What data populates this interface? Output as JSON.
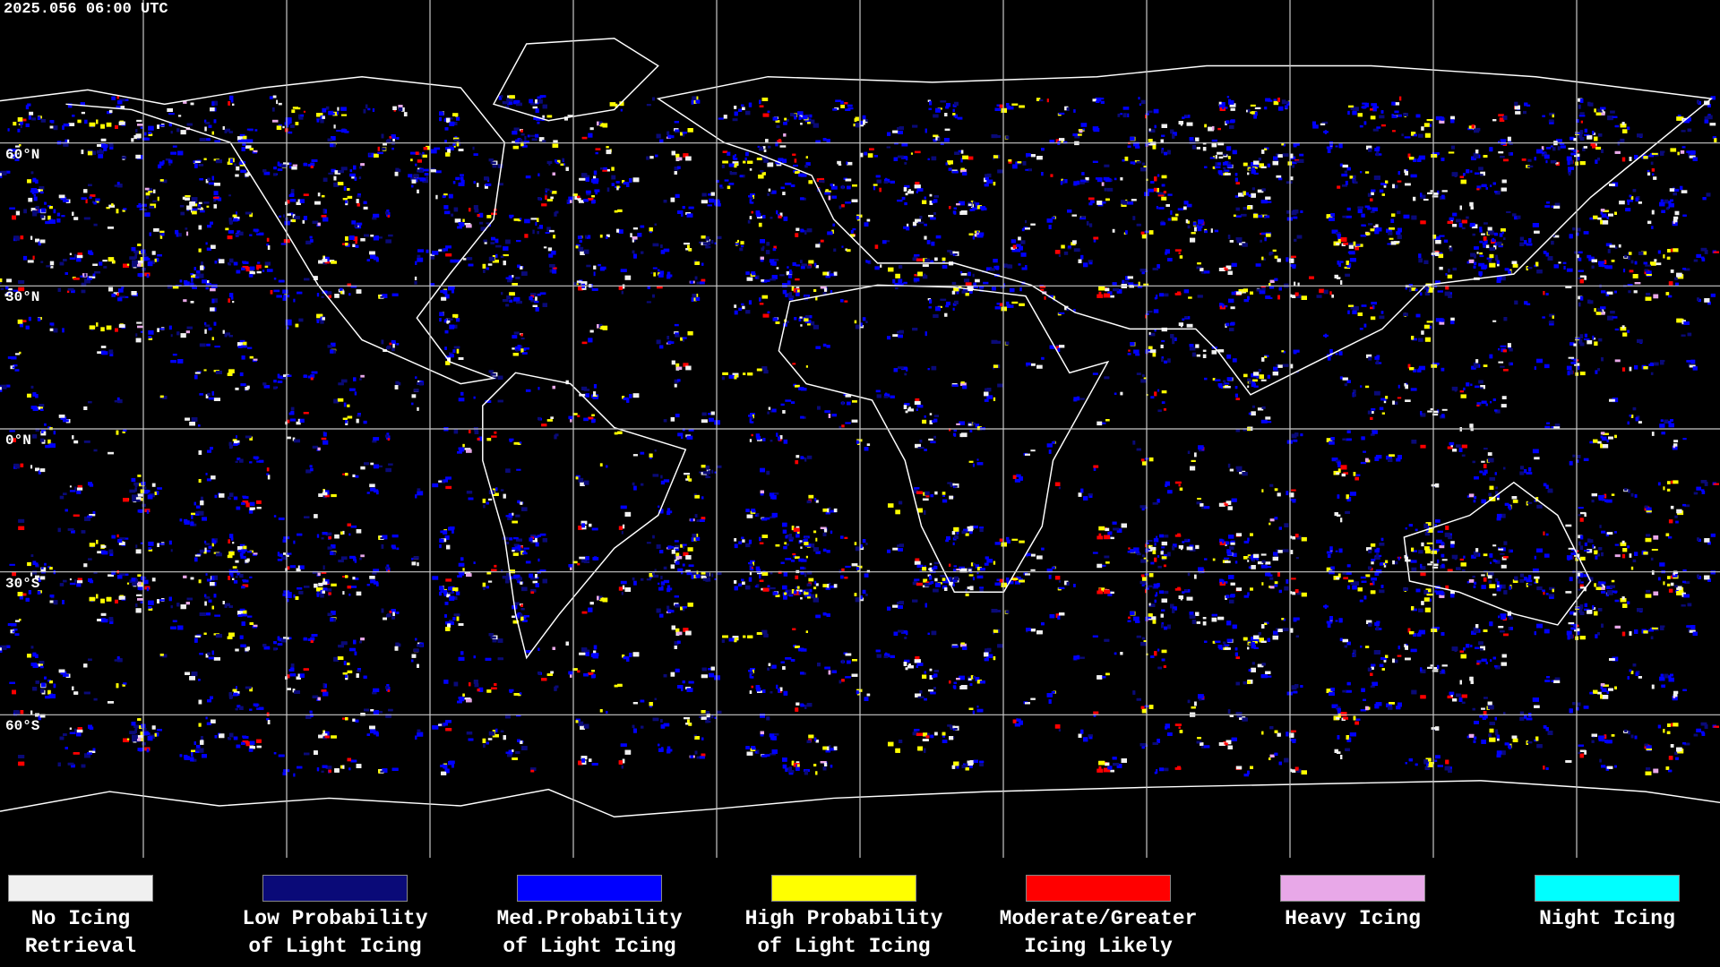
{
  "timestamp": "2025.056 06:00 UTC",
  "latitude_labels": [
    "60°N",
    "30°N",
    "0°N",
    "30°S",
    "60°S"
  ],
  "legend": [
    {
      "color": "#f0f0f0",
      "label": [
        "No Icing",
        "Retrieval"
      ]
    },
    {
      "color": "#0a0a78",
      "label": [
        "Low Probability",
        "of Light Icing"
      ]
    },
    {
      "color": "#0000ff",
      "label": [
        "Med.Probability",
        "of Light Icing"
      ]
    },
    {
      "color": "#ffff00",
      "label": [
        "High Probability",
        "of Light Icing"
      ]
    },
    {
      "color": "#ff0000",
      "label": [
        "Moderate/Greater",
        "Icing Likely"
      ]
    },
    {
      "color": "#e8a8e8",
      "label": [
        "Heavy Icing"
      ]
    },
    {
      "color": "#00ffff",
      "label": [
        "Night Icing"
      ]
    }
  ]
}
